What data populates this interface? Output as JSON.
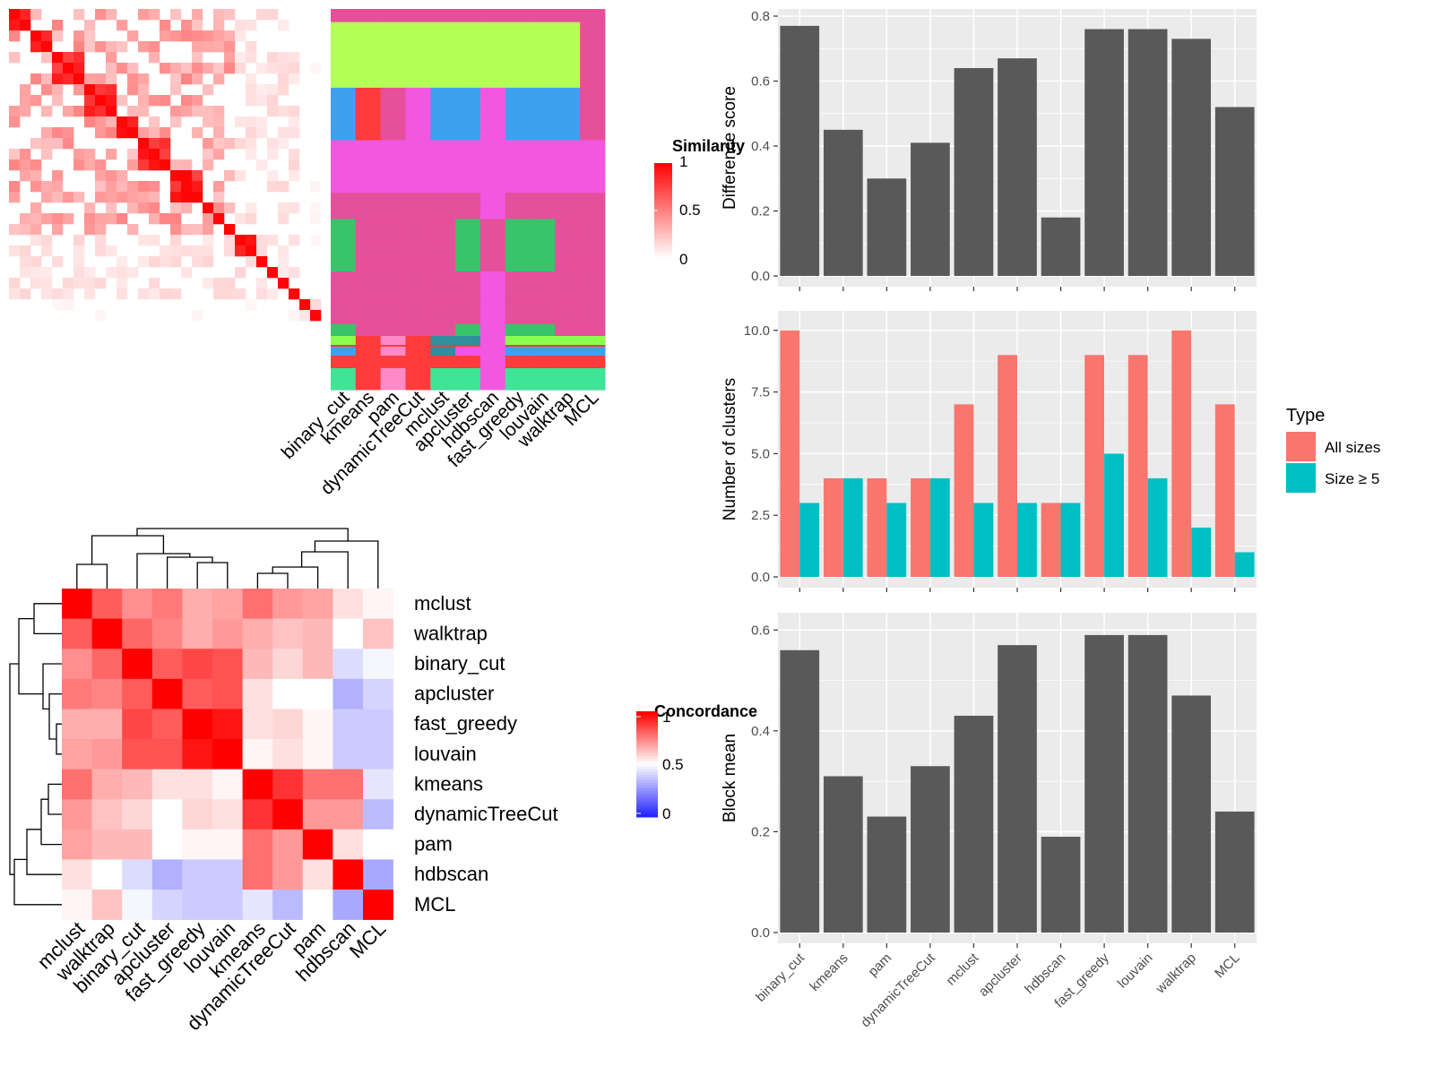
{
  "methods_bar_order": [
    "binary_cut",
    "kmeans",
    "pam",
    "dynamicTreeCut",
    "mclust",
    "apcluster",
    "hdbscan",
    "fast_greedy",
    "louvain",
    "walktrap",
    "MCL"
  ],
  "similarity_heatmap": {
    "legend_title": "Similarity",
    "legend_ticks": [
      "1",
      "0.5",
      "0"
    ],
    "column_labels": [
      "binary_cut",
      "kmeans",
      "pam",
      "dynamicTreeCut",
      "mclust",
      "apcluster",
      "hdbscan",
      "fast_greedy",
      "louvain",
      "walktrap",
      "MCL"
    ],
    "cluster_colors": [
      "#ff3b3b",
      "#f2a1d2",
      "#e64f9a",
      "#b3ff57",
      "#3ea1f0",
      "#f257e0",
      "#2f8f9b",
      "#38c46b",
      "#ff8ac7",
      "#3ee596",
      "#8aff4f"
    ]
  },
  "concordance_heatmap": {
    "legend_title": "Concordance",
    "legend_ticks": [
      "1",
      "0.5",
      "0"
    ],
    "row_labels": [
      "mclust",
      "walktrap",
      "binary_cut",
      "apcluster",
      "fast_greedy",
      "louvain",
      "kmeans",
      "dynamicTreeCut",
      "pam",
      "hdbscan",
      "MCL"
    ],
    "col_labels": [
      "mclust",
      "walktrap",
      "binary_cut",
      "apcluster",
      "fast_greedy",
      "louvain",
      "kmeans",
      "dynamicTreeCut",
      "pam",
      "hdbscan",
      "MCL"
    ],
    "matrix": [
      [
        1.0,
        0.82,
        0.72,
        0.76,
        0.66,
        0.68,
        0.78,
        0.7,
        0.68,
        0.56,
        0.52
      ],
      [
        0.82,
        1.0,
        0.8,
        0.74,
        0.66,
        0.7,
        0.66,
        0.62,
        0.64,
        0.5,
        0.62
      ],
      [
        0.72,
        0.8,
        1.0,
        0.82,
        0.86,
        0.84,
        0.64,
        0.58,
        0.64,
        0.42,
        0.48
      ],
      [
        0.76,
        0.74,
        0.82,
        1.0,
        0.82,
        0.84,
        0.56,
        0.5,
        0.5,
        0.32,
        0.4
      ],
      [
        0.66,
        0.66,
        0.86,
        0.82,
        1.0,
        0.96,
        0.56,
        0.58,
        0.52,
        0.38,
        0.38
      ],
      [
        0.68,
        0.7,
        0.84,
        0.84,
        0.96,
        1.0,
        0.52,
        0.56,
        0.52,
        0.38,
        0.38
      ],
      [
        0.78,
        0.66,
        0.64,
        0.56,
        0.56,
        0.52,
        1.0,
        0.9,
        0.78,
        0.78,
        0.44
      ],
      [
        0.7,
        0.62,
        0.58,
        0.5,
        0.58,
        0.56,
        0.9,
        1.0,
        0.7,
        0.7,
        0.34
      ],
      [
        0.68,
        0.64,
        0.64,
        0.5,
        0.52,
        0.52,
        0.78,
        0.7,
        1.0,
        0.56,
        0.5
      ],
      [
        0.56,
        0.5,
        0.42,
        0.32,
        0.38,
        0.38,
        0.78,
        0.7,
        0.56,
        1.0,
        0.3
      ],
      [
        0.52,
        0.62,
        0.48,
        0.4,
        0.38,
        0.38,
        0.44,
        0.34,
        0.5,
        0.3,
        1.0
      ]
    ]
  },
  "chart_data": [
    {
      "type": "bar",
      "categories": [
        "binary_cut",
        "kmeans",
        "pam",
        "dynamicTreeCut",
        "mclust",
        "apcluster",
        "hdbscan",
        "fast_greedy",
        "louvain",
        "walktrap",
        "MCL"
      ],
      "values": [
        0.77,
        0.45,
        0.3,
        0.41,
        0.64,
        0.67,
        0.18,
        0.76,
        0.76,
        0.73,
        0.52
      ],
      "ylabel": "Difference score",
      "ylim": [
        0,
        0.8
      ],
      "yticks": [
        "0.0",
        "0.2",
        "0.4",
        "0.6",
        "0.8"
      ],
      "bar_color": "#595959",
      "panel_color": "#ebebeb",
      "grid": true
    },
    {
      "type": "bar",
      "categories": [
        "binary_cut",
        "kmeans",
        "pam",
        "dynamicTreeCut",
        "mclust",
        "apcluster",
        "hdbscan",
        "fast_greedy",
        "louvain",
        "walktrap",
        "MCL"
      ],
      "series": [
        {
          "name": "All sizes",
          "color": "#f8766d",
          "values": [
            10,
            4,
            4,
            4,
            7,
            9,
            3,
            9,
            9,
            10,
            7
          ]
        },
        {
          "name": "Size ≥ 5",
          "color": "#00bfc4",
          "values": [
            3,
            4,
            3,
            4,
            3,
            3,
            3,
            5,
            4,
            2,
            1
          ]
        }
      ],
      "ylabel": "Number of clusters",
      "ylim": [
        0,
        10.5
      ],
      "yticks": [
        "0.0",
        "2.5",
        "5.0",
        "7.5",
        "10.0"
      ],
      "legend": {
        "title": "Type",
        "placement": "right"
      },
      "panel_color": "#ebebeb",
      "grid": true
    },
    {
      "type": "bar",
      "categories": [
        "binary_cut",
        "kmeans",
        "pam",
        "dynamicTreeCut",
        "mclust",
        "apcluster",
        "hdbscan",
        "fast_greedy",
        "louvain",
        "walktrap",
        "MCL"
      ],
      "values": [
        0.56,
        0.31,
        0.23,
        0.33,
        0.43,
        0.57,
        0.19,
        0.59,
        0.59,
        0.47,
        0.24
      ],
      "ylabel": "Block mean",
      "ylim": [
        0,
        0.62
      ],
      "yticks": [
        "0.0",
        "0.2",
        "0.4",
        "0.6"
      ],
      "bar_color": "#595959",
      "panel_color": "#ebebeb",
      "grid": true
    }
  ]
}
